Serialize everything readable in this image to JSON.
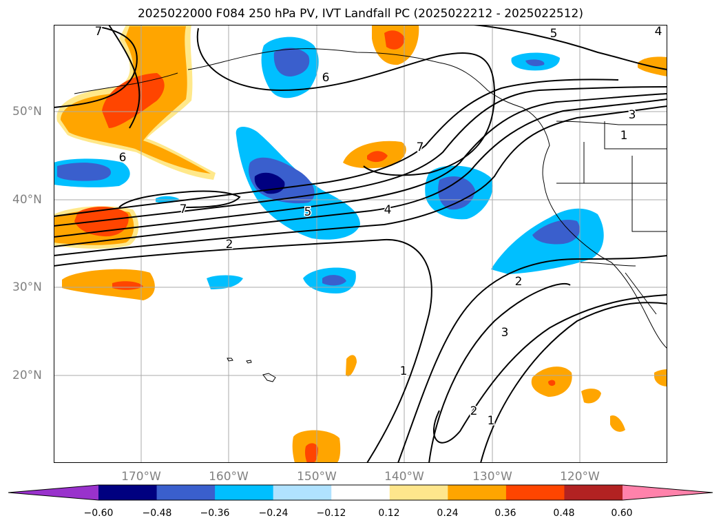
{
  "title": "2025022000 F084 250 hPa PV, IVT Landfall PC (2025022212 - 2025022512)",
  "map": {
    "latitude_labels": [
      "50°N",
      "40°N",
      "30°N",
      "20°N"
    ],
    "longitude_labels": [
      "170°W",
      "160°W",
      "150°W",
      "140°W",
      "130°W",
      "120°W"
    ],
    "contour_labels": [
      "7",
      "6",
      "5",
      "6",
      "7",
      "5",
      "4",
      "2",
      "7",
      "3",
      "1",
      "2",
      "3",
      "1",
      "2",
      "1",
      "4"
    ],
    "fill_colors": {
      "dark_blue": "#000080",
      "medium_blue": "#3a5fcd",
      "blue": "#00bfff",
      "light_blue": "#b0e2ff",
      "light_orange": "#ffe88a",
      "orange": "#ffa500",
      "red_orange": "#ff4500",
      "land_line": "#000000"
    }
  },
  "colorbar": {
    "ticks": [
      "−0.60",
      "−0.48",
      "−0.36",
      "−0.24",
      "−0.12",
      "0.12",
      "0.24",
      "0.36",
      "0.48",
      "0.60"
    ],
    "colors": [
      "#9932cc",
      "#000080",
      "#3a5fcd",
      "#00bfff",
      "#b0e2ff",
      "#ffffff",
      "#fee68c",
      "#ffa500",
      "#ff4500",
      "#b22222",
      "#ff82ab"
    ]
  }
}
